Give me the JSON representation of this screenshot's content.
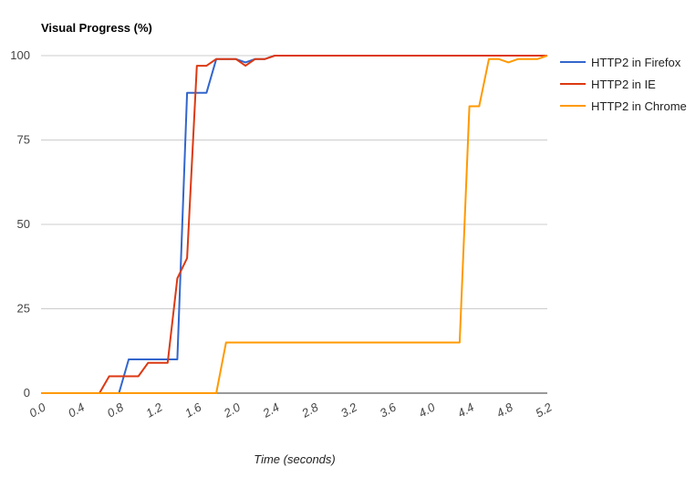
{
  "chart_data": {
    "type": "line",
    "title": "Visual Progress (%)",
    "xlabel": "Time (seconds)",
    "ylabel": "",
    "xlim": [
      0.0,
      5.2
    ],
    "ylim": [
      0,
      100
    ],
    "x_ticks": [
      "0.0",
      "0.4",
      "0.8",
      "1.2",
      "1.6",
      "2.0",
      "2.4",
      "2.8",
      "3.2",
      "3.6",
      "4.0",
      "4.4",
      "4.8",
      "5.2"
    ],
    "y_ticks": [
      "0",
      "25",
      "50",
      "75",
      "100"
    ],
    "grid": true,
    "legend_position": "right",
    "series": [
      {
        "name": "HTTP2 in Firefox",
        "color": "#3366cc",
        "points": [
          [
            0.0,
            0
          ],
          [
            0.8,
            0
          ],
          [
            0.9,
            10
          ],
          [
            1.0,
            10
          ],
          [
            1.4,
            10
          ],
          [
            1.5,
            89
          ],
          [
            1.7,
            89
          ],
          [
            1.8,
            99
          ],
          [
            2.0,
            99
          ],
          [
            2.1,
            98
          ],
          [
            2.2,
            99
          ],
          [
            2.3,
            99
          ],
          [
            2.4,
            100
          ],
          [
            5.2,
            100
          ]
        ]
      },
      {
        "name": "HTTP2 in IE",
        "color": "#dc3912",
        "points": [
          [
            0.0,
            0
          ],
          [
            0.6,
            0
          ],
          [
            0.7,
            5
          ],
          [
            0.8,
            5
          ],
          [
            1.0,
            5
          ],
          [
            1.1,
            9
          ],
          [
            1.3,
            9
          ],
          [
            1.4,
            34
          ],
          [
            1.5,
            40
          ],
          [
            1.6,
            97
          ],
          [
            1.7,
            97
          ],
          [
            1.8,
            99
          ],
          [
            2.0,
            99
          ],
          [
            2.1,
            97
          ],
          [
            2.2,
            99
          ],
          [
            2.3,
            99
          ],
          [
            2.4,
            100
          ],
          [
            5.2,
            100
          ]
        ]
      },
      {
        "name": "HTTP2 in Chrome",
        "color": "#ff9900",
        "points": [
          [
            0.0,
            0
          ],
          [
            1.8,
            0
          ],
          [
            1.9,
            15
          ],
          [
            4.3,
            15
          ],
          [
            4.4,
            85
          ],
          [
            4.5,
            85
          ],
          [
            4.6,
            99
          ],
          [
            4.7,
            99
          ],
          [
            4.8,
            98
          ],
          [
            4.9,
            99
          ],
          [
            5.1,
            99
          ],
          [
            5.2,
            100
          ]
        ]
      }
    ]
  }
}
